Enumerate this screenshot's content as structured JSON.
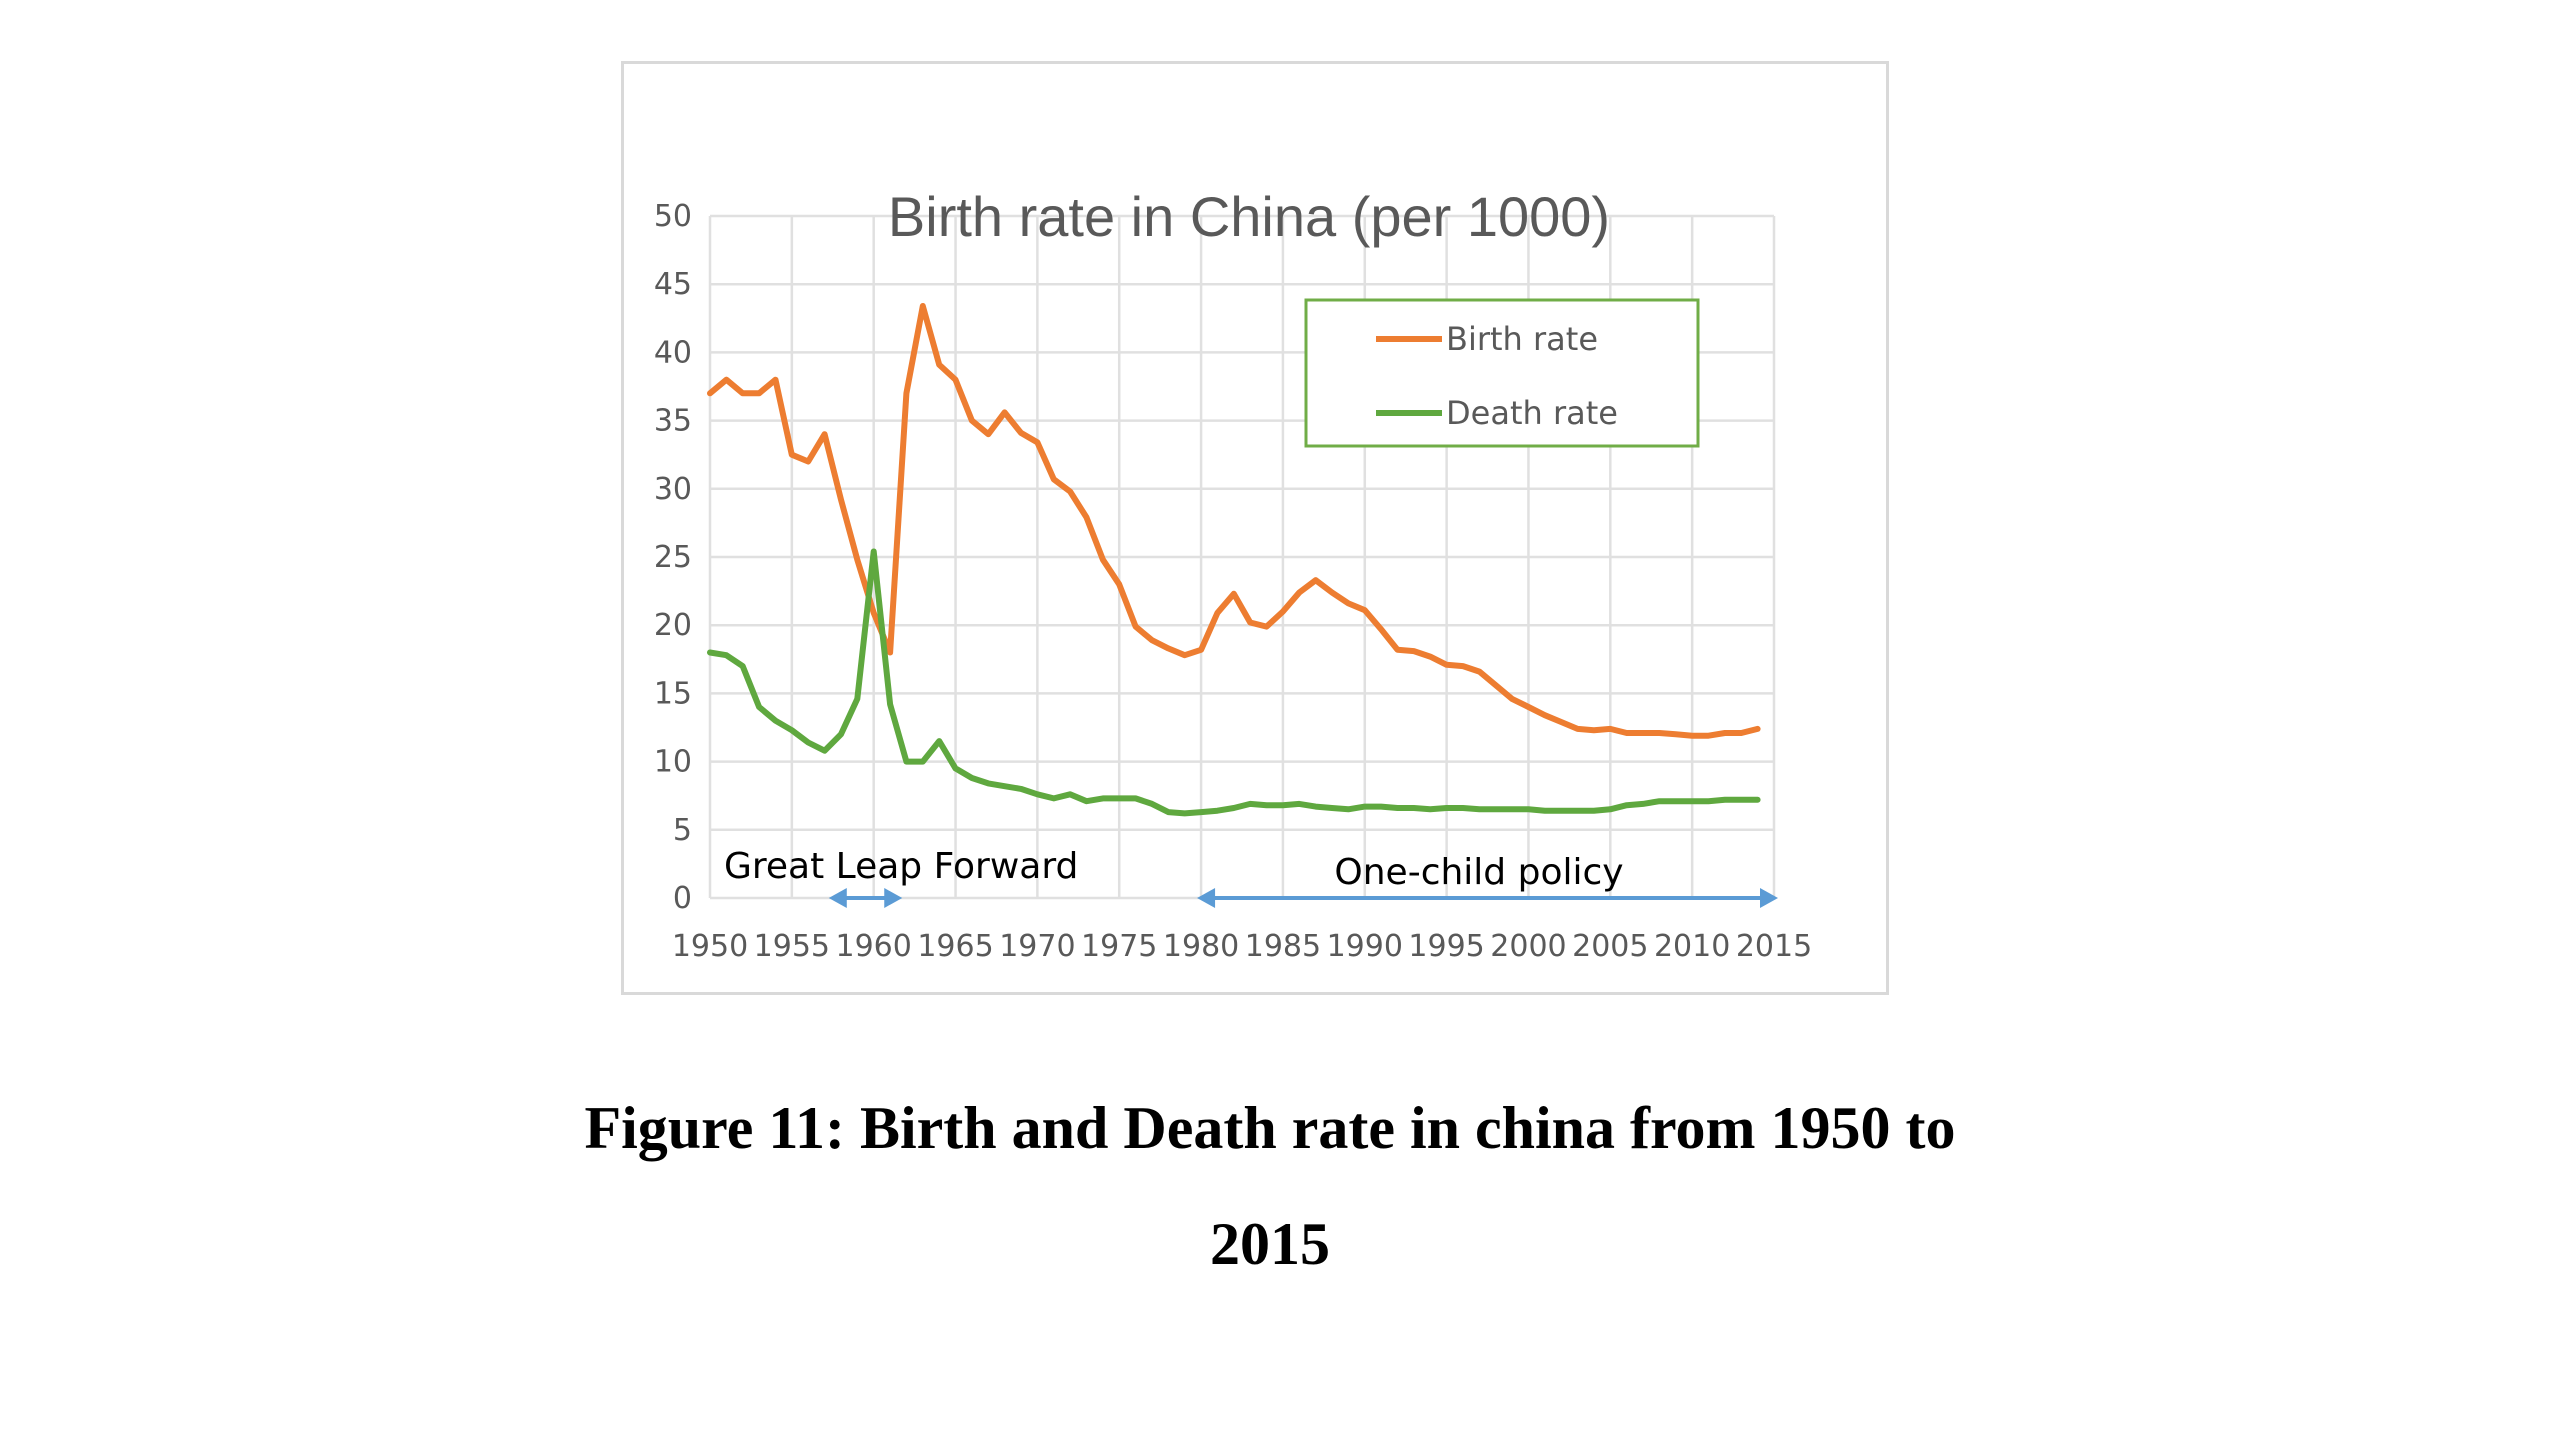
{
  "caption": {
    "line1": "Figure 11: Birth and Death rate in china from 1950 to",
    "line2": "2015"
  },
  "chart_data": {
    "type": "line",
    "title": "Birth rate in China (per 1000)",
    "xlabel": "",
    "ylabel": "",
    "xlim": [
      1950,
      2015
    ],
    "ylim": [
      0,
      50
    ],
    "x_ticks": [
      1950,
      1955,
      1960,
      1965,
      1970,
      1975,
      1980,
      1985,
      1990,
      1995,
      2000,
      2005,
      2010,
      2015
    ],
    "y_ticks": [
      0,
      5,
      10,
      15,
      20,
      25,
      30,
      35,
      40,
      45,
      50
    ],
    "grid": true,
    "legend_position": "top-right",
    "series": [
      {
        "name": "Birth rate",
        "color": "#ED7D31",
        "x": [
          1950,
          1951,
          1952,
          1953,
          1954,
          1955,
          1956,
          1957,
          1958,
          1959,
          1960,
          1961,
          1962,
          1963,
          1964,
          1965,
          1966,
          1967,
          1968,
          1969,
          1970,
          1971,
          1972,
          1973,
          1974,
          1975,
          1976,
          1977,
          1978,
          1979,
          1980,
          1981,
          1982,
          1983,
          1984,
          1985,
          1986,
          1987,
          1988,
          1989,
          1990,
          1991,
          1992,
          1993,
          1994,
          1995,
          1996,
          1997,
          1998,
          1999,
          2000,
          2001,
          2002,
          2003,
          2004,
          2005,
          2006,
          2007,
          2008,
          2009,
          2010,
          2011,
          2012,
          2013,
          2014
        ],
        "values": [
          37,
          38,
          37,
          37,
          38,
          32.5,
          32,
          34,
          29.2,
          24.8,
          20.9,
          18,
          37,
          43.4,
          39.1,
          38,
          35,
          34,
          35.6,
          34.1,
          33.4,
          30.7,
          29.8,
          27.9,
          24.8,
          23,
          19.9,
          18.9,
          18.3,
          17.8,
          18.2,
          20.9,
          22.3,
          20.2,
          19.9,
          21,
          22.4,
          23.3,
          22.4,
          21.6,
          21.1,
          19.7,
          18.2,
          18.1,
          17.7,
          17.1,
          17,
          16.6,
          15.6,
          14.6,
          14,
          13.4,
          12.9,
          12.4,
          12.3,
          12.4,
          12.1,
          12.1,
          12.1,
          12,
          11.9,
          11.9,
          12.1,
          12.1,
          12.4
        ]
      },
      {
        "name": "Death rate",
        "color": "#5FA83F",
        "x": [
          1950,
          1951,
          1952,
          1953,
          1954,
          1955,
          1956,
          1957,
          1958,
          1959,
          1960,
          1961,
          1962,
          1963,
          1964,
          1965,
          1966,
          1967,
          1968,
          1969,
          1970,
          1971,
          1972,
          1973,
          1974,
          1975,
          1976,
          1977,
          1978,
          1979,
          1980,
          1981,
          1982,
          1983,
          1984,
          1985,
          1986,
          1987,
          1988,
          1989,
          1990,
          1991,
          1992,
          1993,
          1994,
          1995,
          1996,
          1997,
          1998,
          1999,
          2000,
          2001,
          2002,
          2003,
          2004,
          2005,
          2006,
          2007,
          2008,
          2009,
          2010,
          2011,
          2012,
          2013,
          2014
        ],
        "values": [
          18,
          17.8,
          17,
          14,
          13,
          12.3,
          11.4,
          10.8,
          12,
          14.6,
          25.4,
          14.2,
          10,
          10,
          11.5,
          9.5,
          8.8,
          8.4,
          8.2,
          8,
          7.6,
          7.3,
          7.6,
          7.1,
          7.3,
          7.3,
          7.3,
          6.9,
          6.3,
          6.2,
          6.3,
          6.4,
          6.6,
          6.9,
          6.8,
          6.8,
          6.9,
          6.7,
          6.6,
          6.5,
          6.7,
          6.7,
          6.6,
          6.6,
          6.5,
          6.6,
          6.6,
          6.5,
          6.5,
          6.5,
          6.5,
          6.4,
          6.4,
          6.4,
          6.4,
          6.5,
          6.8,
          6.9,
          7.1,
          7.1,
          7.1,
          7.1,
          7.2,
          7.2,
          7.2
        ]
      }
    ],
    "annotations": [
      {
        "label": "Great Leap Forward",
        "x_start": 1957.5,
        "x_end": 1961.5
      },
      {
        "label": "One-child policy",
        "x_start": 1980,
        "x_end": 2015
      }
    ],
    "annotation_arrow_color": "#5B9BD5",
    "legend_border_color": "#70AD47",
    "gridline_color": "#e0e0e0",
    "frame_color": "#d9d9d9"
  }
}
